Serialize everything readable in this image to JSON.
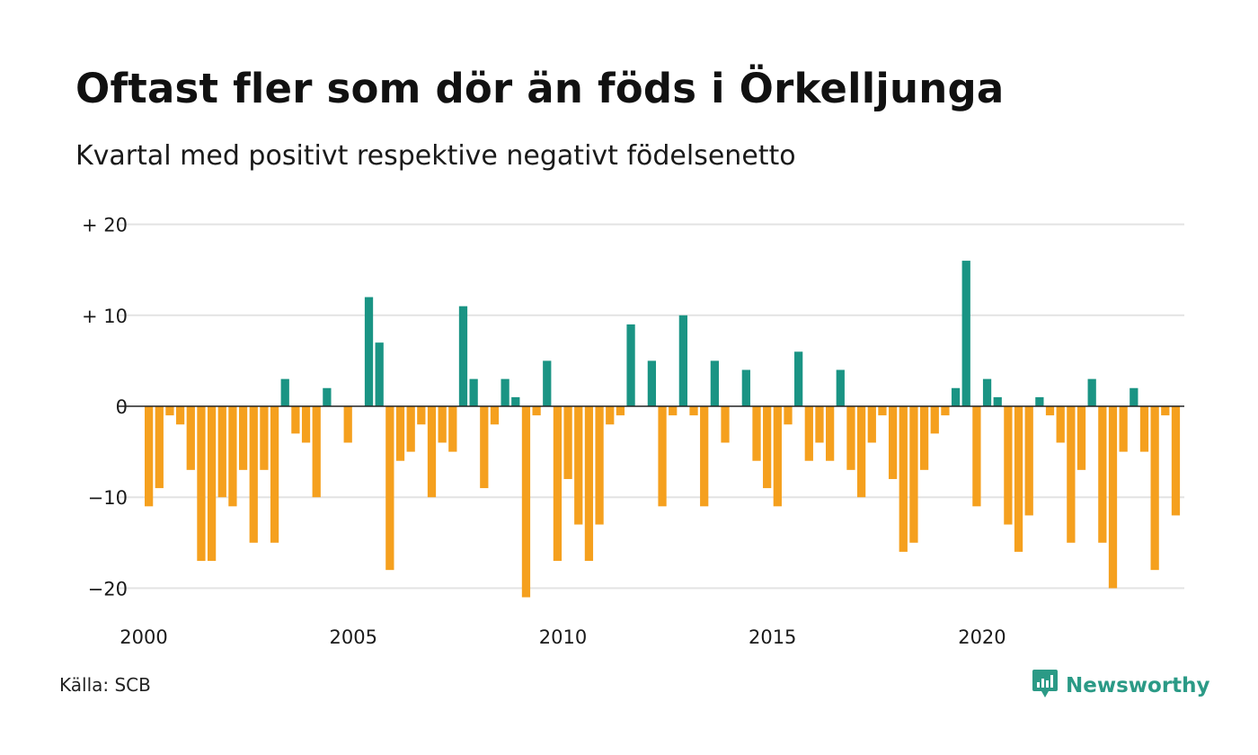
{
  "title": "Oftast fler som dör än föds i Örkelljunga",
  "subtitle": "Kvartal med positivt respektive negativt födelsenetto",
  "source": "Källa: SCB",
  "brand": {
    "name": "Newsworthy",
    "icon": "newsworthy-logo-icon"
  },
  "colors": {
    "positive": "#1a9484",
    "negative": "#f5a01e",
    "grid": "#e3e3e3",
    "axis": "#222222"
  },
  "chart_data": {
    "type": "bar",
    "x_start_year": 2000,
    "periods_per_year": 4,
    "values": [
      -11,
      -9,
      -1,
      -2,
      -7,
      -17,
      -17,
      -10,
      -11,
      -7,
      -15,
      -7,
      -15,
      3,
      -3,
      -4,
      -10,
      2,
      0,
      -4,
      0,
      12,
      7,
      -18,
      -6,
      -5,
      -2,
      -10,
      -4,
      -5,
      11,
      3,
      -9,
      -2,
      3,
      1,
      -21,
      -1,
      5,
      -17,
      -8,
      -13,
      -17,
      -13,
      -2,
      -1,
      9,
      0,
      5,
      -11,
      -1,
      10,
      -1,
      -11,
      5,
      -4,
      0,
      4,
      -6,
      -9,
      -11,
      -2,
      6,
      -6,
      -4,
      -6,
      4,
      -7,
      -10,
      -4,
      -1,
      -8,
      -16,
      -15,
      -7,
      -3,
      -1,
      2,
      16,
      -11,
      3,
      1,
      -13,
      -16,
      -12,
      1,
      -1,
      -4,
      -15,
      -7,
      3,
      -15,
      -20,
      -5,
      2,
      -5,
      -18,
      -1,
      -12
    ],
    "ylim": [
      -22,
      20
    ],
    "yticks": [
      {
        "value": 20,
        "label": "+ 20"
      },
      {
        "value": 10,
        "label": "+ 10"
      },
      {
        "value": 0,
        "label": "0"
      },
      {
        "value": -10,
        "label": "−10"
      },
      {
        "value": -20,
        "label": "−20"
      }
    ],
    "xticks": [
      {
        "value": 2000,
        "label": "2000"
      },
      {
        "value": 2005,
        "label": "2005"
      },
      {
        "value": 2010,
        "label": "2010"
      },
      {
        "value": 2015,
        "label": "2015"
      },
      {
        "value": 2020,
        "label": "2020"
      }
    ],
    "grid": true,
    "legend": "none"
  }
}
